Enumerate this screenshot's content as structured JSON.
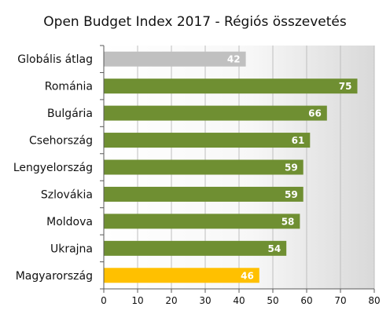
{
  "chart_data": {
    "type": "bar",
    "orientation": "horizontal",
    "title": "Open Budget Index 2017 - Régiós összevetés",
    "xlabel": "",
    "ylabel": "",
    "categories": [
      "Globális átlag",
      "Románia",
      "Bulgária",
      "Csehország",
      "Lengyelország",
      "Szlovákia",
      "Moldova",
      "Ukrajna",
      "Magyarország"
    ],
    "values": [
      42,
      75,
      66,
      61,
      59,
      59,
      58,
      54,
      46
    ],
    "data_labels": [
      "42",
      "75",
      "66",
      "61",
      "59",
      "59",
      "58",
      "54",
      "46"
    ],
    "bar_colors": [
      "#c0c0c0",
      "#6f8f32",
      "#6f8f32",
      "#6f8f32",
      "#6f8f32",
      "#6f8f32",
      "#6f8f32",
      "#6f8f32",
      "#ffc000"
    ],
    "xlim": [
      0,
      80
    ],
    "ticks": [
      "0",
      "10",
      "20",
      "30",
      "40",
      "50",
      "60",
      "70",
      "80"
    ],
    "grid": true,
    "legend": "none",
    "background": "gradient white to light gray"
  }
}
